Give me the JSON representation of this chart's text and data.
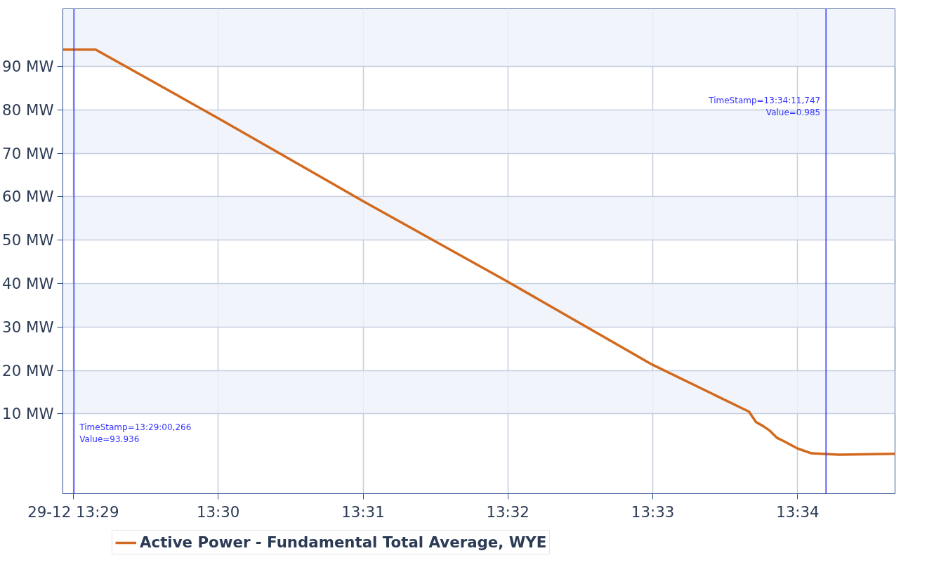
{
  "chart_data": {
    "type": "line",
    "x": [
      13.48213,
      13.48589,
      13.5,
      13.51667,
      13.53308,
      13.54987,
      13.56107,
      13.56187,
      13.56267,
      13.56347,
      13.56427,
      13.56507,
      13.56667,
      13.56827,
      13.57147,
      13.57787
    ],
    "series": [
      {
        "name": "Active Power - Fundamental Total Average, WYE",
        "color": "#d2691e",
        "values": [
          93.9,
          93.9,
          78.1,
          59.0,
          40.7,
          21.4,
          10.5,
          8.1,
          7.2,
          6.1,
          4.5,
          3.7,
          2.0,
          0.9,
          0.6,
          0.8
        ]
      }
    ],
    "xlim": [
      13.48213,
      13.57787
    ],
    "xticks": [
      {
        "value": 13.48333,
        "label": "29-12 13:29"
      },
      {
        "value": 13.5,
        "label": "13:30"
      },
      {
        "value": 13.51667,
        "label": "13:31"
      },
      {
        "value": 13.53333,
        "label": "13:32"
      },
      {
        "value": 13.55,
        "label": "13:33"
      },
      {
        "value": 13.56667,
        "label": "13:34"
      }
    ],
    "ylim": [
      -8.4,
      103.3
    ],
    "yticks": [
      {
        "value": 10,
        "label": "10 MW"
      },
      {
        "value": 20,
        "label": "20 MW"
      },
      {
        "value": 30,
        "label": "30 MW"
      },
      {
        "value": 40,
        "label": "40 MW"
      },
      {
        "value": 50,
        "label": "50 MW"
      },
      {
        "value": 60,
        "label": "60 MW"
      },
      {
        "value": 70,
        "label": "70 MW"
      },
      {
        "value": 80,
        "label": "80 MW"
      },
      {
        "value": 90,
        "label": "90 MW"
      }
    ],
    "ref_lines": [
      {
        "axis": "x",
        "value": 13.483407,
        "color": "#3333ff"
      },
      {
        "axis": "x",
        "value": 13.56993,
        "color": "#3333ff"
      }
    ],
    "annotations": [
      "TimeStamp=13:29:00,266\nValue=93.936",
      "TimeStamp=13:34:11,747\nValue=0.985"
    ],
    "grid": true,
    "legend": "bottom",
    "line_style": "solid",
    "marker": "none"
  }
}
